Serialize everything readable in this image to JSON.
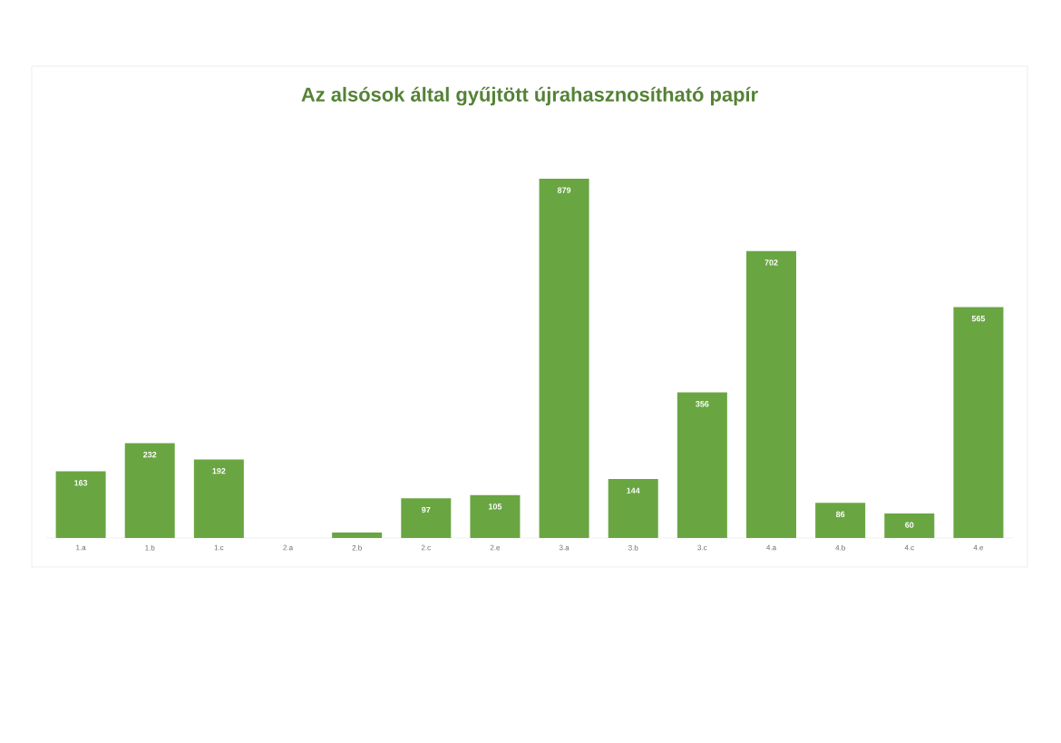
{
  "chart_data": {
    "type": "bar",
    "title": "Az alsósok által gyűjtött újrahasznosítható papír",
    "categories": [
      "1.a",
      "1.b",
      "1.c",
      "2.a",
      "2.b",
      "2.c",
      "2.e",
      "3.a",
      "3.b",
      "3.c",
      "4.a",
      "4.b",
      "4.c",
      "4.e"
    ],
    "values": [
      163,
      232,
      192,
      0,
      13,
      97,
      105,
      879,
      144,
      356,
      702,
      86,
      60,
      565
    ],
    "value_labels": [
      "163",
      "232",
      "192",
      null,
      null,
      "97",
      "105",
      "879",
      "144",
      "356",
      "702",
      "86",
      "60",
      "565"
    ],
    "color": "#69a642"
  }
}
